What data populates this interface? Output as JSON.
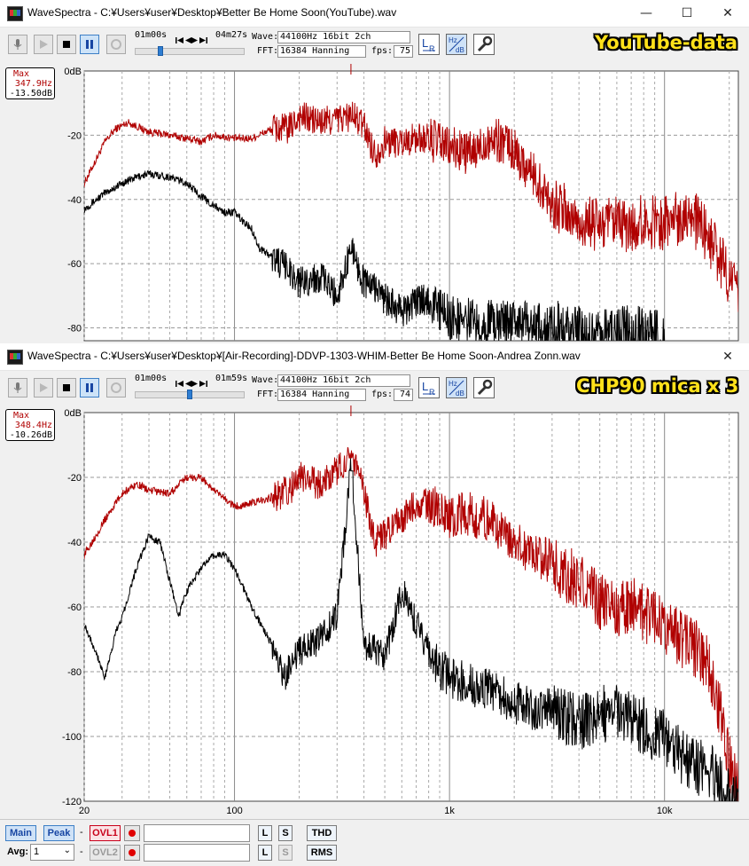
{
  "windows": [
    {
      "title": "WaveSpectra - C:¥Users¥user¥Desktop¥Better Be Home Soon(YouTube).wav",
      "position": "01m00s",
      "duration": "04m27s",
      "seek_fraction": 0.22,
      "wave_label": "Wave:",
      "wave": "44100Hz 16bit 2ch",
      "fft_label": "FFT:",
      "fft": "16384 Hanning",
      "fps_label": "fps:",
      "fps": "75",
      "banner": "YouTube-data",
      "max_label": "Max",
      "max_freq": "347.9Hz",
      "max_db": "-13.50dB",
      "zero_db_label": "0dB",
      "chart_data": {
        "type": "line",
        "x_scale": "log",
        "xlim": [
          20,
          22050
        ],
        "ylim": [
          -84,
          0
        ],
        "ylabel": "",
        "xlabel": "",
        "y_ticks": [
          "0dB",
          "-20",
          "-40",
          "-60",
          "-80"
        ],
        "x_ticks": [],
        "grid": true,
        "series": [
          {
            "color": "#b00000",
            "points": [
              [
                20,
                -35
              ],
              [
                25,
                -22
              ],
              [
                28,
                -18
              ],
              [
                32,
                -16
              ],
              [
                40,
                -19
              ],
              [
                50,
                -20
              ],
              [
                60,
                -21
              ],
              [
                70,
                -22
              ],
              [
                80,
                -20
              ],
              [
                100,
                -21
              ],
              [
                120,
                -21
              ],
              [
                150,
                -18
              ],
              [
                180,
                -18
              ],
              [
                200,
                -14
              ],
              [
                250,
                -16
              ],
              [
                300,
                -15
              ],
              [
                350,
                -14
              ],
              [
                400,
                -17
              ],
              [
                450,
                -26
              ],
              [
                500,
                -22
              ],
              [
                600,
                -22
              ],
              [
                700,
                -21
              ],
              [
                800,
                -21
              ],
              [
                1000,
                -24
              ],
              [
                1300,
                -26
              ],
              [
                1500,
                -21
              ],
              [
                1800,
                -22
              ],
              [
                2000,
                -25
              ],
              [
                2500,
                -33
              ],
              [
                3000,
                -41
              ],
              [
                4000,
                -47
              ],
              [
                5000,
                -48
              ],
              [
                6000,
                -48
              ],
              [
                7000,
                -49
              ],
              [
                8000,
                -47
              ],
              [
                10000,
                -47
              ],
              [
                12000,
                -45
              ],
              [
                13000,
                -43
              ],
              [
                14000,
                -47
              ],
              [
                16000,
                -52
              ],
              [
                18000,
                -58
              ],
              [
                20000,
                -64
              ],
              [
                22050,
                -70
              ]
            ]
          },
          {
            "color": "#000000",
            "points": [
              [
                20,
                -43
              ],
              [
                25,
                -38
              ],
              [
                30,
                -35
              ],
              [
                35,
                -33
              ],
              [
                40,
                -32
              ],
              [
                50,
                -33
              ],
              [
                60,
                -35
              ],
              [
                70,
                -39
              ],
              [
                80,
                -42
              ],
              [
                90,
                -44
              ],
              [
                100,
                -44
              ],
              [
                110,
                -47
              ],
              [
                120,
                -49
              ],
              [
                130,
                -55
              ],
              [
                150,
                -58
              ],
              [
                180,
                -62
              ],
              [
                200,
                -66
              ],
              [
                250,
                -64
              ],
              [
                300,
                -70
              ],
              [
                350,
                -55
              ],
              [
                400,
                -66
              ],
              [
                450,
                -67
              ],
              [
                500,
                -71
              ],
              [
                600,
                -75
              ],
              [
                700,
                -72
              ],
              [
                800,
                -71
              ],
              [
                1000,
                -77
              ],
              [
                1500,
                -78
              ],
              [
                2000,
                -78
              ],
              [
                3000,
                -80
              ],
              [
                4000,
                -82
              ],
              [
                5000,
                -83
              ],
              [
                6000,
                -82
              ],
              [
                8000,
                -82
              ],
              [
                10000,
                -84
              ]
            ]
          }
        ]
      }
    },
    {
      "title": "WaveSpectra - C:¥Users¥user¥Desktop¥[Air-Recording]-DDVP-1303-WHIM-Better Be Home Soon-Andrea Zonn.wav",
      "position": "01m00s",
      "duration": "01m59s",
      "seek_fraction": 0.5,
      "wave_label": "Wave:",
      "wave": "44100Hz 16bit 2ch",
      "fft_label": "FFT:",
      "fft": "16384 Hanning",
      "fps_label": "fps:",
      "fps": "74",
      "banner": "CHP90 mica x 3",
      "max_label": "Max",
      "max_freq": "348.4Hz",
      "max_db": "-10.26dB",
      "zero_db_label": "0dB",
      "chart_data": {
        "type": "line",
        "x_scale": "log",
        "xlim": [
          20,
          22050
        ],
        "ylim": [
          -120,
          0
        ],
        "ylabel": "",
        "xlabel": "",
        "y_ticks": [
          "0dB",
          "-20",
          "-40",
          "-60",
          "-80",
          "-100",
          "-120"
        ],
        "x_ticks": [
          "20",
          "100",
          "1k",
          "10k"
        ],
        "grid": true,
        "series": [
          {
            "color": "#b00000",
            "points": [
              [
                20,
                -44
              ],
              [
                25,
                -33
              ],
              [
                30,
                -25
              ],
              [
                35,
                -22
              ],
              [
                40,
                -24
              ],
              [
                50,
                -25
              ],
              [
                60,
                -20
              ],
              [
                70,
                -20
              ],
              [
                80,
                -24
              ],
              [
                100,
                -29
              ],
              [
                120,
                -28
              ],
              [
                150,
                -26
              ],
              [
                180,
                -24
              ],
              [
                200,
                -20
              ],
              [
                250,
                -22
              ],
              [
                300,
                -18
              ],
              [
                350,
                -12
              ],
              [
                400,
                -25
              ],
              [
                450,
                -40
              ],
              [
                500,
                -38
              ],
              [
                600,
                -33
              ],
              [
                700,
                -28
              ],
              [
                800,
                -28
              ],
              [
                1000,
                -32
              ],
              [
                1200,
                -31
              ],
              [
                1500,
                -33
              ],
              [
                2000,
                -40
              ],
              [
                2500,
                -44
              ],
              [
                3000,
                -46
              ],
              [
                3500,
                -50
              ],
              [
                4000,
                -52
              ],
              [
                5000,
                -58
              ],
              [
                6000,
                -61
              ],
              [
                7000,
                -59
              ],
              [
                8000,
                -62
              ],
              [
                10000,
                -66
              ],
              [
                12000,
                -70
              ],
              [
                14000,
                -73
              ],
              [
                16000,
                -78
              ],
              [
                18000,
                -92
              ],
              [
                20000,
                -108
              ],
              [
                22050,
                -115
              ]
            ]
          },
          {
            "color": "#000000",
            "points": [
              [
                20,
                -65
              ],
              [
                23,
                -75
              ],
              [
                25,
                -82
              ],
              [
                28,
                -68
              ],
              [
                30,
                -63
              ],
              [
                35,
                -48
              ],
              [
                40,
                -38
              ],
              [
                45,
                -40
              ],
              [
                50,
                -52
              ],
              [
                55,
                -63
              ],
              [
                60,
                -55
              ],
              [
                70,
                -48
              ],
              [
                80,
                -44
              ],
              [
                90,
                -44
              ],
              [
                100,
                -48
              ],
              [
                120,
                -60
              ],
              [
                150,
                -72
              ],
              [
                170,
                -82
              ],
              [
                200,
                -74
              ],
              [
                250,
                -70
              ],
              [
                300,
                -62
              ],
              [
                350,
                -16
              ],
              [
                400,
                -72
              ],
              [
                500,
                -75
              ],
              [
                600,
                -55
              ],
              [
                700,
                -65
              ],
              [
                800,
                -74
              ],
              [
                1000,
                -82
              ],
              [
                1500,
                -85
              ],
              [
                2000,
                -90
              ],
              [
                3000,
                -92
              ],
              [
                4000,
                -96
              ],
              [
                5000,
                -93
              ],
              [
                6000,
                -93
              ],
              [
                8000,
                -97
              ],
              [
                10000,
                -100
              ],
              [
                12000,
                -106
              ],
              [
                14000,
                -110
              ],
              [
                16000,
                -110
              ],
              [
                20000,
                -118
              ],
              [
                22050,
                -120
              ]
            ]
          }
        ]
      }
    }
  ],
  "controls": {
    "main": "Main",
    "peak": "Peak",
    "dash": "-",
    "ovl1": "OVL1",
    "ovl2": "OVL2",
    "L": "L",
    "S": "S",
    "thd": "THD",
    "rms": "RMS",
    "avg_label": "Avg:",
    "avg_value": "1"
  }
}
